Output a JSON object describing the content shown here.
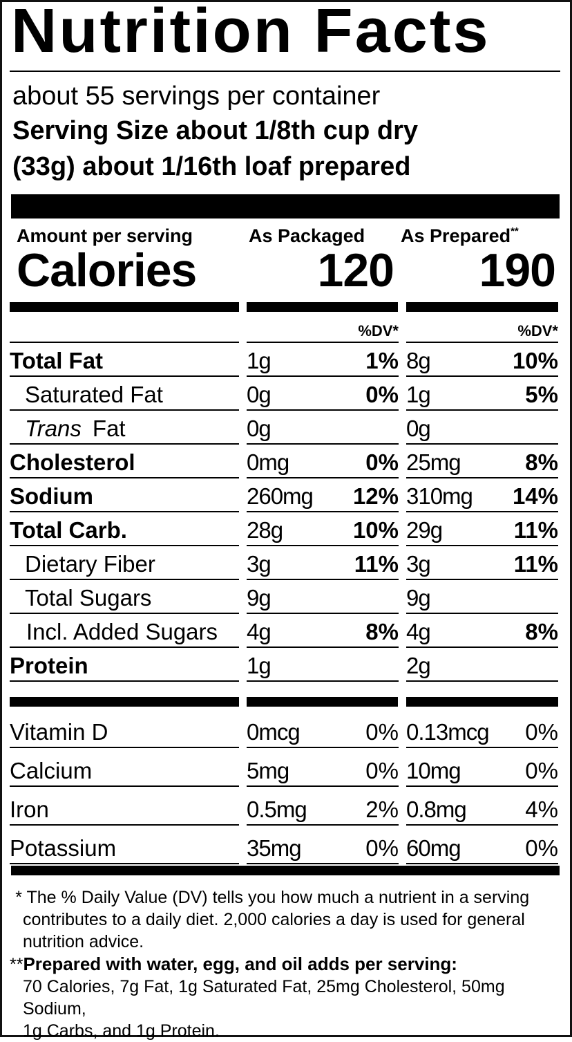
{
  "title": "Nutrition Facts",
  "servings_per_container": "about 55 servings per container",
  "serving_size_line1": "Serving Size about 1/8th cup dry",
  "serving_size_line2": "(33g) about 1/16th loaf prepared",
  "header": {
    "amount_label": "Amount per serving",
    "col1": "As Packaged",
    "col2": "As Prepared",
    "col2_mark": "**"
  },
  "calories": {
    "label": "Calories",
    "packaged": "120",
    "prepared": "190"
  },
  "dv_header": "%DV*",
  "nutrients": [
    {
      "name": "Total Fat",
      "bold": true,
      "indent": 0,
      "pkg": "1g",
      "pkg_dv": "1%",
      "prep": "8g",
      "prep_dv": "10%"
    },
    {
      "name": "Saturated Fat",
      "bold": false,
      "indent": 1,
      "pkg": "0g",
      "pkg_dv": "0%",
      "prep": "1g",
      "prep_dv": "5%"
    },
    {
      "name": "Trans",
      "name_suffix": "Fat",
      "bold": false,
      "indent": 1,
      "pkg": "0g",
      "pkg_dv": "",
      "prep": "0g",
      "prep_dv": ""
    },
    {
      "name": "Cholesterol",
      "bold": true,
      "indent": 0,
      "pkg": "0mg",
      "pkg_dv": "0%",
      "prep": "25mg",
      "prep_dv": "8%"
    },
    {
      "name": "Sodium",
      "bold": true,
      "indent": 0,
      "pkg": "260mg",
      "pkg_dv": "12%",
      "prep": "310mg",
      "prep_dv": "14%"
    },
    {
      "name": "Total Carb.",
      "bold": true,
      "indent": 0,
      "pkg": "28g",
      "pkg_dv": "10%",
      "prep": "29g",
      "prep_dv": "11%"
    },
    {
      "name": "Dietary Fiber",
      "bold": false,
      "indent": 1,
      "pkg": "3g",
      "pkg_dv": "11%",
      "prep": "3g",
      "prep_dv": "11%"
    },
    {
      "name": "Total Sugars",
      "bold": false,
      "indent": 1,
      "pkg": "9g",
      "pkg_dv": "",
      "prep": "9g",
      "prep_dv": ""
    },
    {
      "name": "Incl. Added Sugars",
      "bold": false,
      "indent": 2,
      "pkg": "4g",
      "pkg_dv": "8%",
      "prep": "4g",
      "prep_dv": "8%"
    },
    {
      "name": "Protein",
      "bold": true,
      "indent": 0,
      "pkg": "1g",
      "pkg_dv": "",
      "prep": "2g",
      "prep_dv": ""
    }
  ],
  "vitamins": [
    {
      "name": "Vitamin D",
      "pkg": "0mcg",
      "pkg_dv": "0%",
      "prep": "0.13mcg",
      "prep_dv": "0%"
    },
    {
      "name": "Calcium",
      "pkg": "5mg",
      "pkg_dv": "0%",
      "prep": "10mg",
      "prep_dv": "0%"
    },
    {
      "name": "Iron",
      "pkg": "0.5mg",
      "pkg_dv": "2%",
      "prep": "0.8mg",
      "prep_dv": "4%"
    },
    {
      "name": "Potassium",
      "pkg": "35mg",
      "pkg_dv": "0%",
      "prep": "60mg",
      "prep_dv": "0%"
    }
  ],
  "footnotes": {
    "dv_mark": "*",
    "dv_text_line1": "The % Daily Value (DV) tells you how much a nutrient in a serving",
    "dv_text_line2": "contributes to a daily diet. 2,000 calories a day is used for general",
    "dv_text_line3": "nutrition advice.",
    "prep_mark": "**",
    "prep_heading": "Prepared with water, egg, and oil adds per serving:",
    "prep_text_line1": "70 Calories, 7g Fat, 1g Saturated Fat, 25mg Cholesterol, 50mg Sodium,",
    "prep_text_line2": "1g Carbs, and 1g Protein."
  }
}
